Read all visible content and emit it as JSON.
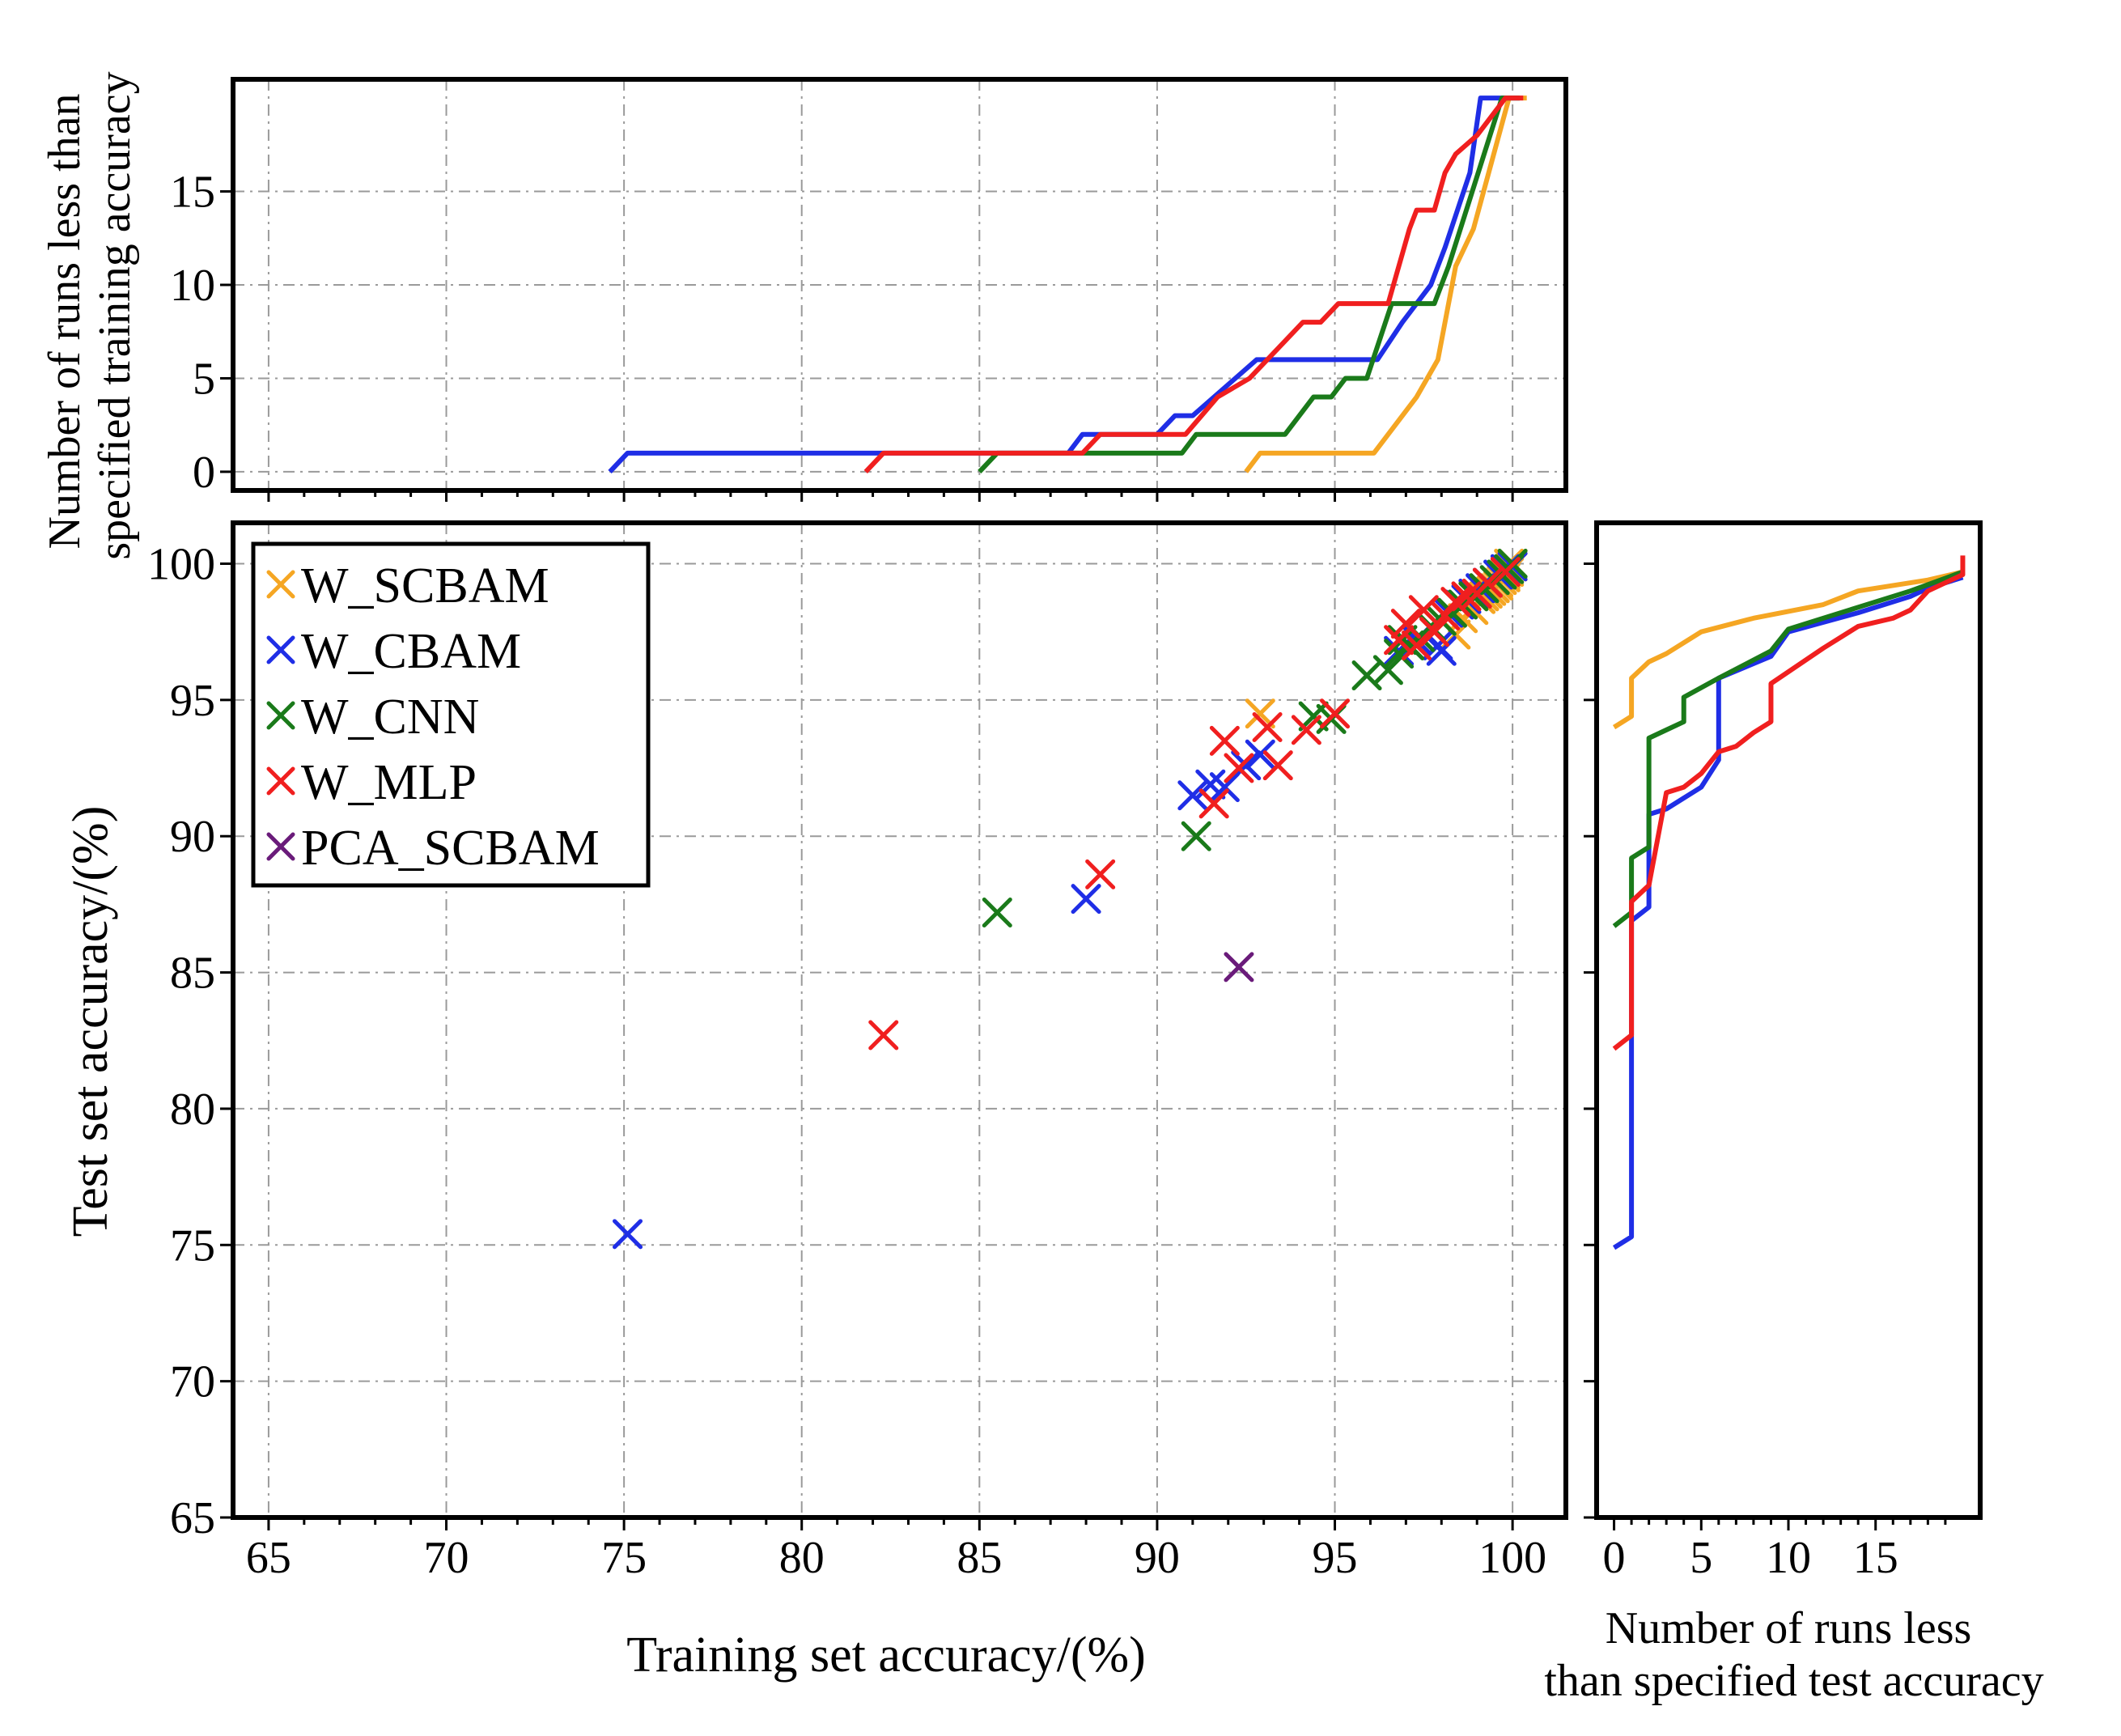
{
  "colors": {
    "W_SCBAM": "#f5a623",
    "W_CBAM": "#1f2ee6",
    "W_CNN": "#1a7a1a",
    "W_MLP": "#f01f1f",
    "PCA_SCBAM": "#6a1b7a"
  },
  "chart_data": [
    {
      "id": "scatter",
      "type": "scatter",
      "xlabel": "Training set accuracy/(%)",
      "ylabel": "Test set accuracy/(%)",
      "xlim": [
        64,
        101.5
      ],
      "ylim": [
        65,
        101.5
      ],
      "xticks": [
        65,
        70,
        75,
        80,
        85,
        90,
        95,
        100
      ],
      "yticks": [
        65,
        70,
        75,
        80,
        85,
        90,
        95,
        100
      ],
      "grid": true,
      "legend_position": "top-left",
      "legend": [
        "W_SCBAM",
        "W_CBAM",
        "W_CNN",
        "W_MLP",
        "PCA_SCBAM"
      ],
      "series": [
        {
          "name": "W_SCBAM",
          "points": [
            [
              92.9,
              94.5
            ],
            [
              98.4,
              97.4
            ],
            [
              98.6,
              98.0
            ],
            [
              98.9,
              98.3
            ],
            [
              99.1,
              98.7
            ],
            [
              99.3,
              98.9
            ],
            [
              99.5,
              99.1
            ],
            [
              99.6,
              99.3
            ],
            [
              99.7,
              99.4
            ],
            [
              99.8,
              99.5
            ],
            [
              99.8,
              99.6
            ],
            [
              99.9,
              99.7
            ],
            [
              99.9,
              99.8
            ],
            [
              100.0,
              99.9
            ],
            [
              100.0,
              99.9
            ],
            [
              99.4,
              99.0
            ],
            [
              99.2,
              98.8
            ],
            [
              99.6,
              99.2
            ],
            [
              100.0,
              100.0
            ],
            [
              99.9,
              100.0
            ]
          ]
        },
        {
          "name": "W_CBAM",
          "points": [
            [
              75.1,
              75.4
            ],
            [
              88.0,
              87.7
            ],
            [
              91.0,
              91.5
            ],
            [
              91.5,
              91.9
            ],
            [
              91.9,
              91.8
            ],
            [
              92.5,
              92.6
            ],
            [
              92.9,
              93.0
            ],
            [
              96.8,
              96.8
            ],
            [
              97.3,
              97.2
            ],
            [
              97.9,
              97.0
            ],
            [
              98.0,
              96.8
            ],
            [
              98.2,
              98.2
            ],
            [
              98.5,
              98.5
            ],
            [
              98.7,
              98.7
            ],
            [
              98.9,
              98.9
            ],
            [
              99.1,
              99.1
            ],
            [
              99.3,
              99.3
            ],
            [
              99.6,
              99.6
            ],
            [
              99.8,
              99.8
            ],
            [
              100.0,
              99.9
            ]
          ]
        },
        {
          "name": "W_CNN",
          "points": [
            [
              85.5,
              87.2
            ],
            [
              91.1,
              90.0
            ],
            [
              94.4,
              94.4
            ],
            [
              94.9,
              94.3
            ],
            [
              95.9,
              95.9
            ],
            [
              96.5,
              96.1
            ],
            [
              96.8,
              96.7
            ],
            [
              97.1,
              97.0
            ],
            [
              97.4,
              97.3
            ],
            [
              97.7,
              97.7
            ],
            [
              98.0,
              97.9
            ],
            [
              98.3,
              98.2
            ],
            [
              98.6,
              98.5
            ],
            [
              98.9,
              98.8
            ],
            [
              99.2,
              99.1
            ],
            [
              99.5,
              99.4
            ],
            [
              99.7,
              99.6
            ],
            [
              99.9,
              99.8
            ],
            [
              100.0,
              100.0
            ],
            [
              96.9,
              97.2
            ]
          ]
        },
        {
          "name": "W_MLP",
          "points": [
            [
              82.3,
              82.7
            ],
            [
              88.4,
              88.6
            ],
            [
              91.6,
              91.2
            ],
            [
              91.9,
              93.5
            ],
            [
              92.3,
              92.5
            ],
            [
              93.1,
              94.0
            ],
            [
              93.4,
              92.6
            ],
            [
              94.2,
              93.9
            ],
            [
              95.0,
              94.5
            ],
            [
              96.8,
              97.2
            ],
            [
              97.0,
              97.8
            ],
            [
              97.3,
              97.0
            ],
            [
              97.5,
              98.3
            ],
            [
              97.8,
              97.5
            ],
            [
              98.1,
              98.1
            ],
            [
              98.4,
              98.6
            ],
            [
              98.7,
              98.8
            ],
            [
              99.0,
              98.9
            ],
            [
              99.3,
              99.3
            ],
            [
              99.8,
              99.7
            ]
          ]
        },
        {
          "name": "PCA_SCBAM",
          "points": [
            [
              92.3,
              85.2
            ]
          ]
        }
      ]
    },
    {
      "id": "top",
      "type": "line",
      "ylabel": "Number of runs less than specified training accuracy",
      "xlim": [
        64,
        101.5
      ],
      "ylim": [
        -1,
        21
      ],
      "yticks": [
        0,
        5,
        10,
        15
      ],
      "grid": true,
      "series": [
        {
          "name": "W_SCBAM",
          "x": [
            92.5,
            92.9,
            95.8,
            96.1,
            97.3,
            97.9,
            98.4,
            98.9,
            99.9,
            100.4
          ],
          "y": [
            0,
            1,
            1,
            1,
            4,
            6,
            11,
            13,
            20,
            20
          ]
        },
        {
          "name": "W_CBAM",
          "x": [
            74.6,
            75.1,
            87.5,
            87.9,
            90.0,
            90.5,
            91.0,
            92.8,
            96.2,
            96.9,
            97.7,
            98.1,
            98.8,
            99.1,
            100.2
          ],
          "y": [
            0,
            1,
            1,
            2,
            2,
            3,
            3,
            6,
            6,
            8,
            10,
            12,
            16,
            20,
            20
          ]
        },
        {
          "name": "W_CNN",
          "x": [
            85.0,
            85.5,
            90.7,
            91.1,
            93.6,
            94.4,
            94.9,
            95.3,
            95.9,
            96.6,
            97.8,
            98.2,
            98.7,
            99.7,
            100.2
          ],
          "y": [
            0,
            1,
            1,
            2,
            2,
            4,
            4,
            5,
            5,
            9,
            9,
            11,
            14,
            20,
            20
          ]
        },
        {
          "name": "W_MLP",
          "x": [
            81.8,
            82.3,
            87.9,
            88.4,
            90.8,
            91.7,
            92.6,
            93.6,
            94.1,
            94.6,
            95.1,
            96.5,
            97.1,
            97.3,
            97.8,
            98.1,
            98.4,
            99.0,
            99.8,
            100.3
          ],
          "y": [
            0,
            1,
            1,
            2,
            2,
            4,
            5,
            7,
            8,
            8,
            9,
            9,
            13,
            14,
            14,
            16,
            17,
            18,
            20,
            20
          ]
        }
      ]
    },
    {
      "id": "right",
      "type": "line",
      "xlabel": "Number of runs less than specified test accuracy",
      "xlim": [
        -1,
        21
      ],
      "ylim": [
        65,
        101.5
      ],
      "xticks": [
        0,
        5,
        10,
        15
      ],
      "series": [
        {
          "name": "W_SCBAM",
          "x": [
            0,
            1,
            1,
            2,
            3,
            5,
            8,
            12,
            14,
            18,
            20
          ],
          "y": [
            94.0,
            94.4,
            95.8,
            96.4,
            96.7,
            97.5,
            98.0,
            98.5,
            99.0,
            99.4,
            99.7
          ]
        },
        {
          "name": "W_CBAM",
          "x": [
            0,
            1,
            1,
            2,
            2,
            3,
            4,
            5,
            6,
            6,
            9,
            10,
            14,
            17,
            18,
            20
          ],
          "y": [
            74.9,
            75.3,
            86.9,
            87.4,
            90.8,
            91.0,
            91.4,
            91.8,
            92.8,
            95.8,
            96.6,
            97.5,
            98.2,
            98.8,
            99.1,
            99.5
          ]
        },
        {
          "name": "W_CNN",
          "x": [
            0,
            1,
            1,
            2,
            2,
            3,
            4,
            4,
            6,
            9,
            10,
            14,
            17,
            20
          ],
          "y": [
            86.7,
            87.2,
            89.2,
            89.6,
            93.6,
            93.9,
            94.2,
            95.1,
            95.8,
            96.8,
            97.6,
            98.4,
            99.0,
            99.7
          ]
        },
        {
          "name": "W_MLP",
          "x": [
            0,
            1,
            1,
            2,
            3,
            4,
            5,
            6,
            7,
            8,
            9,
            9,
            12,
            14,
            16,
            17,
            18,
            20,
            20
          ],
          "y": [
            82.2,
            82.7,
            87.6,
            88.2,
            91.6,
            91.8,
            92.3,
            93.1,
            93.3,
            93.8,
            94.2,
            95.6,
            96.9,
            97.7,
            98.0,
            98.3,
            99.0,
            99.6,
            100.3
          ]
        }
      ]
    }
  ]
}
